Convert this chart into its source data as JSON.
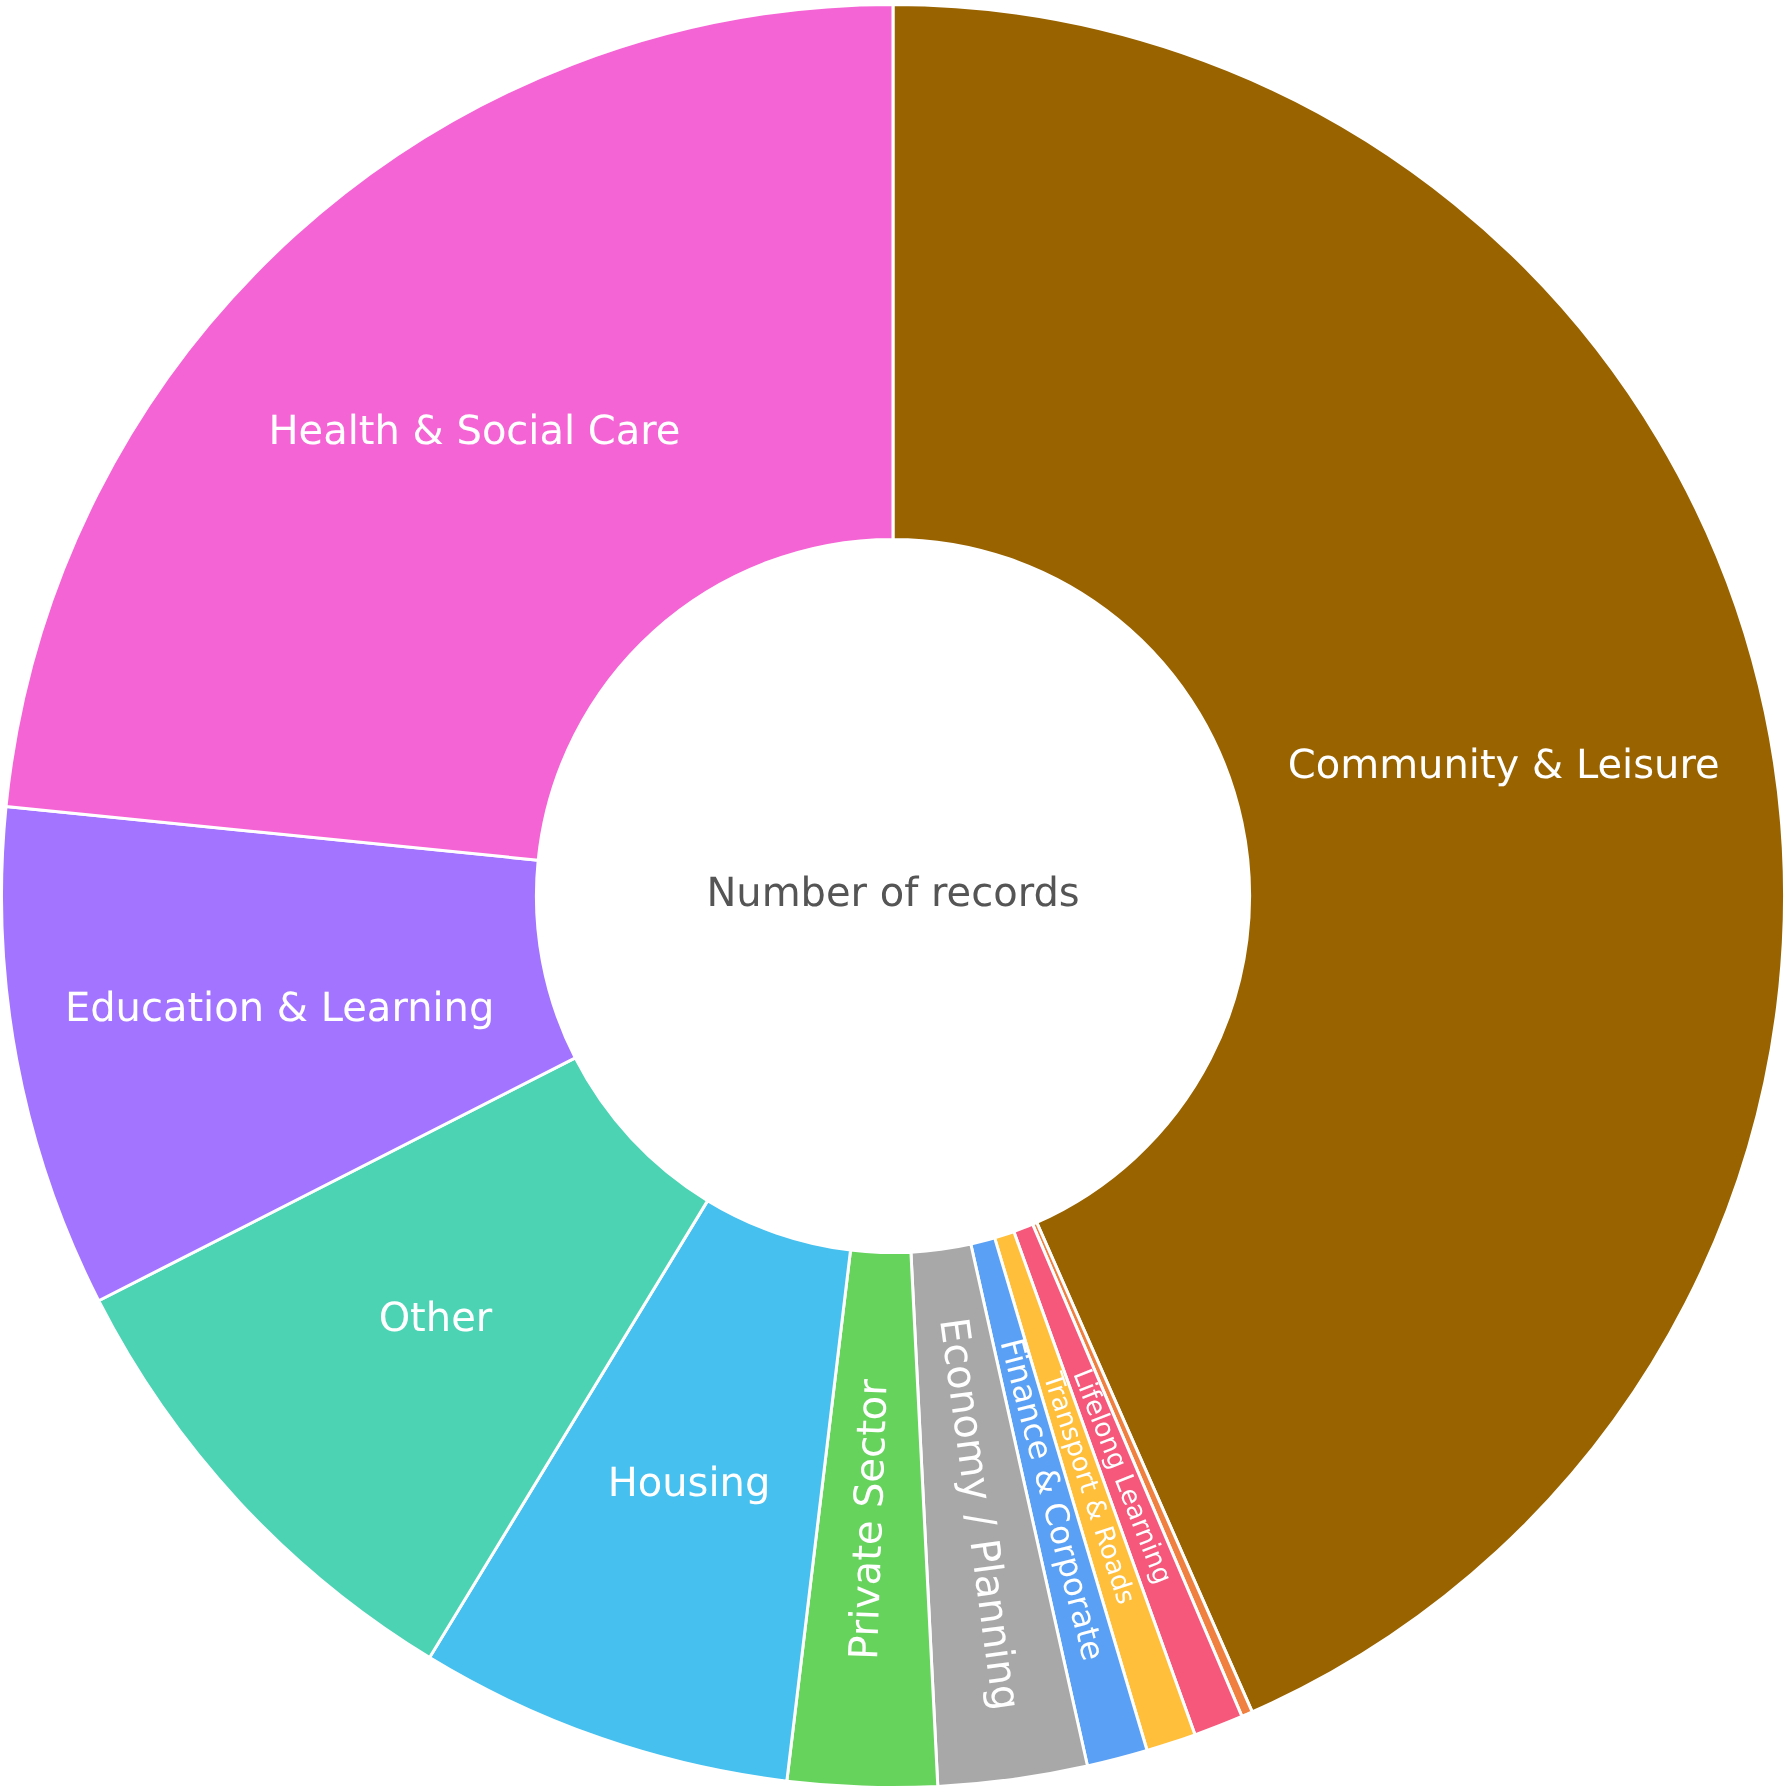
{
  "chart_data": {
    "type": "donut",
    "title": "Number of records",
    "categories": [
      "Community & Leisure",
      null,
      "Lifelong Learning",
      "Transport & Roads",
      "Finance & Corporate",
      "Economy / Planning",
      "Private Sector",
      "Housing",
      "Other",
      "Education & Learning",
      "Health & Social Care"
    ],
    "values": [
      43.4,
      0.2,
      0.9,
      0.9,
      1.1,
      2.7,
      2.7,
      6.8,
      8.8,
      9.1,
      23.4
    ],
    "colors": [
      "#996300",
      "#f08040",
      "#f5587a",
      "#ffbf3a",
      "#5aa0f5",
      "#a8a8a8",
      "#66d35c",
      "#45c0ef",
      "#4bd3b4",
      "#a374ff",
      "#f564d4"
    ],
    "legend": false
  }
}
